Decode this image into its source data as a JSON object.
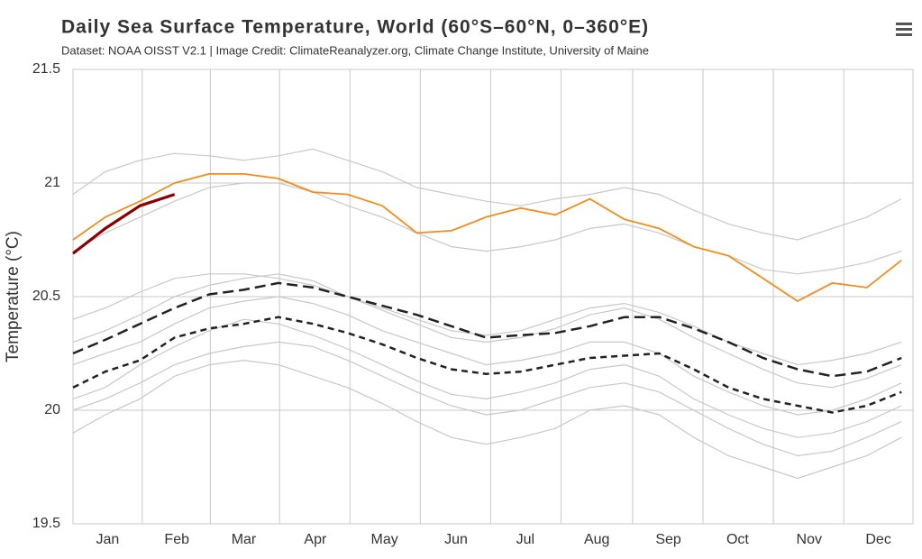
{
  "chart_data": {
    "type": "line",
    "title": "Daily Sea Surface Temperature, World (60°S–60°N, 0–360°E)",
    "subtitle": "Dataset: NOAA OISST V2.1 | Image Credit: ClimateReanalyzer.org, Climate Change Institute, University of Maine",
    "y_label": "Temperature (°C)",
    "x": [
      1,
      15,
      30,
      45,
      60,
      75,
      90,
      105,
      120,
      135,
      150,
      165,
      180,
      195,
      210,
      225,
      240,
      255,
      270,
      285,
      300,
      315,
      330,
      345,
      360
    ],
    "xlim": [
      1,
      365
    ],
    "xticks": [
      {
        "value": 16,
        "label": "Jan"
      },
      {
        "value": 46,
        "label": "Feb"
      },
      {
        "value": 75,
        "label": "Mar"
      },
      {
        "value": 106,
        "label": "Apr"
      },
      {
        "value": 136,
        "label": "May"
      },
      {
        "value": 167,
        "label": "Jun"
      },
      {
        "value": 197,
        "label": "Jul"
      },
      {
        "value": 228,
        "label": "Aug"
      },
      {
        "value": 259,
        "label": "Sep"
      },
      {
        "value": 289,
        "label": "Oct"
      },
      {
        "value": 320,
        "label": "Nov"
      },
      {
        "value": 350,
        "label": "Dec"
      }
    ],
    "ylim": [
      19.5,
      21.5
    ],
    "yticks": [
      19.5,
      20,
      20.5,
      21,
      21.5
    ],
    "grid": true,
    "series": [
      {
        "color": "#c8c8c8",
        "style": "solid",
        "values": [
          20.95,
          21.05,
          21.1,
          21.13,
          21.12,
          21.1,
          21.12,
          21.15,
          21.1,
          21.05,
          20.98,
          20.95,
          20.92,
          20.9,
          20.93,
          20.95,
          20.98,
          20.95,
          20.88,
          20.82,
          20.78,
          20.75,
          20.8,
          20.85,
          20.93
        ]
      },
      {
        "color": "#c8c8c8",
        "style": "solid",
        "values": [
          20.7,
          20.78,
          20.85,
          20.92,
          20.98,
          21.0,
          21.0,
          20.96,
          20.9,
          20.85,
          20.78,
          20.72,
          20.7,
          20.72,
          20.75,
          20.8,
          20.82,
          20.78,
          20.72,
          20.68,
          20.62,
          20.6,
          20.62,
          20.65,
          20.7
        ]
      },
      {
        "color": "#c8c8c8",
        "style": "solid",
        "values": [
          20.4,
          20.45,
          20.52,
          20.58,
          20.6,
          20.6,
          20.58,
          20.55,
          20.5,
          20.45,
          20.4,
          20.35,
          20.33,
          20.35,
          20.4,
          20.45,
          20.47,
          20.43,
          20.37,
          20.3,
          20.25,
          20.2,
          20.22,
          20.25,
          20.3
        ]
      },
      {
        "color": "#c8c8c8",
        "style": "solid",
        "values": [
          20.2,
          20.25,
          20.3,
          20.38,
          20.45,
          20.48,
          20.5,
          20.47,
          20.42,
          20.35,
          20.3,
          20.25,
          20.2,
          20.22,
          20.25,
          20.3,
          20.3,
          20.25,
          20.15,
          20.08,
          20.02,
          19.98,
          20.0,
          20.05,
          20.12
        ]
      },
      {
        "color": "#c8c8c8",
        "style": "solid",
        "values": [
          20.0,
          20.05,
          20.12,
          20.2,
          20.25,
          20.28,
          20.3,
          20.28,
          20.22,
          20.15,
          20.08,
          20.02,
          19.98,
          20.0,
          20.05,
          20.1,
          20.12,
          20.08,
          20.0,
          19.92,
          19.85,
          19.8,
          19.82,
          19.88,
          19.95
        ]
      },
      {
        "color": "#c8c8c8",
        "style": "solid",
        "values": [
          19.9,
          19.98,
          20.05,
          20.15,
          20.2,
          20.22,
          20.2,
          20.15,
          20.1,
          20.03,
          19.95,
          19.88,
          19.85,
          19.88,
          19.92,
          20.0,
          20.02,
          19.98,
          19.88,
          19.8,
          19.75,
          19.7,
          19.75,
          19.8,
          19.88
        ]
      },
      {
        "color": "#c8c8c8",
        "style": "solid",
        "values": [
          20.3,
          20.35,
          20.42,
          20.5,
          20.55,
          20.58,
          20.6,
          20.57,
          20.5,
          20.44,
          20.38,
          20.32,
          20.3,
          20.32,
          20.36,
          20.42,
          20.45,
          20.4,
          20.32,
          20.25,
          20.18,
          20.12,
          20.1,
          20.14,
          20.2
        ]
      },
      {
        "color": "#c8c8c8",
        "style": "solid",
        "values": [
          20.05,
          20.1,
          20.2,
          20.28,
          20.35,
          20.4,
          20.38,
          20.33,
          20.27,
          20.2,
          20.13,
          20.07,
          20.05,
          20.08,
          20.12,
          20.18,
          20.2,
          20.15,
          20.05,
          19.98,
          19.92,
          19.88,
          19.9,
          19.95,
          20.02
        ]
      },
      {
        "color": "#222222",
        "style": "long-dash",
        "values": [
          20.25,
          20.31,
          20.38,
          20.45,
          20.51,
          20.53,
          20.56,
          20.54,
          20.5,
          20.46,
          20.42,
          20.37,
          20.32,
          20.33,
          20.34,
          20.37,
          20.41,
          20.41,
          20.36,
          20.3,
          20.23,
          20.18,
          20.15,
          20.17,
          20.23
        ]
      },
      {
        "color": "#222222",
        "style": "dashed",
        "values": [
          20.1,
          20.17,
          20.22,
          20.32,
          20.36,
          20.38,
          20.41,
          20.38,
          20.34,
          20.29,
          20.23,
          20.18,
          20.16,
          20.17,
          20.2,
          20.23,
          20.24,
          20.25,
          20.18,
          20.1,
          20.05,
          20.02,
          19.99,
          20.02,
          20.08
        ]
      },
      {
        "color": "#f28c1a",
        "style": "solid",
        "values": [
          20.75,
          20.85,
          20.92,
          21.0,
          21.04,
          21.04,
          21.02,
          20.96,
          20.95,
          20.9,
          20.78,
          20.79,
          20.85,
          20.89,
          20.86,
          20.93,
          20.84,
          20.8,
          20.72,
          20.68,
          20.58,
          20.48,
          20.56,
          20.54,
          20.66
        ]
      },
      {
        "color": "#8b0000",
        "style": "bold",
        "values": [
          20.69,
          20.8,
          20.9,
          20.95,
          null,
          null,
          null,
          null,
          null,
          null,
          null,
          null,
          null,
          null,
          null,
          null,
          null,
          null,
          null,
          null,
          null,
          null,
          null,
          null,
          null
        ]
      }
    ]
  }
}
